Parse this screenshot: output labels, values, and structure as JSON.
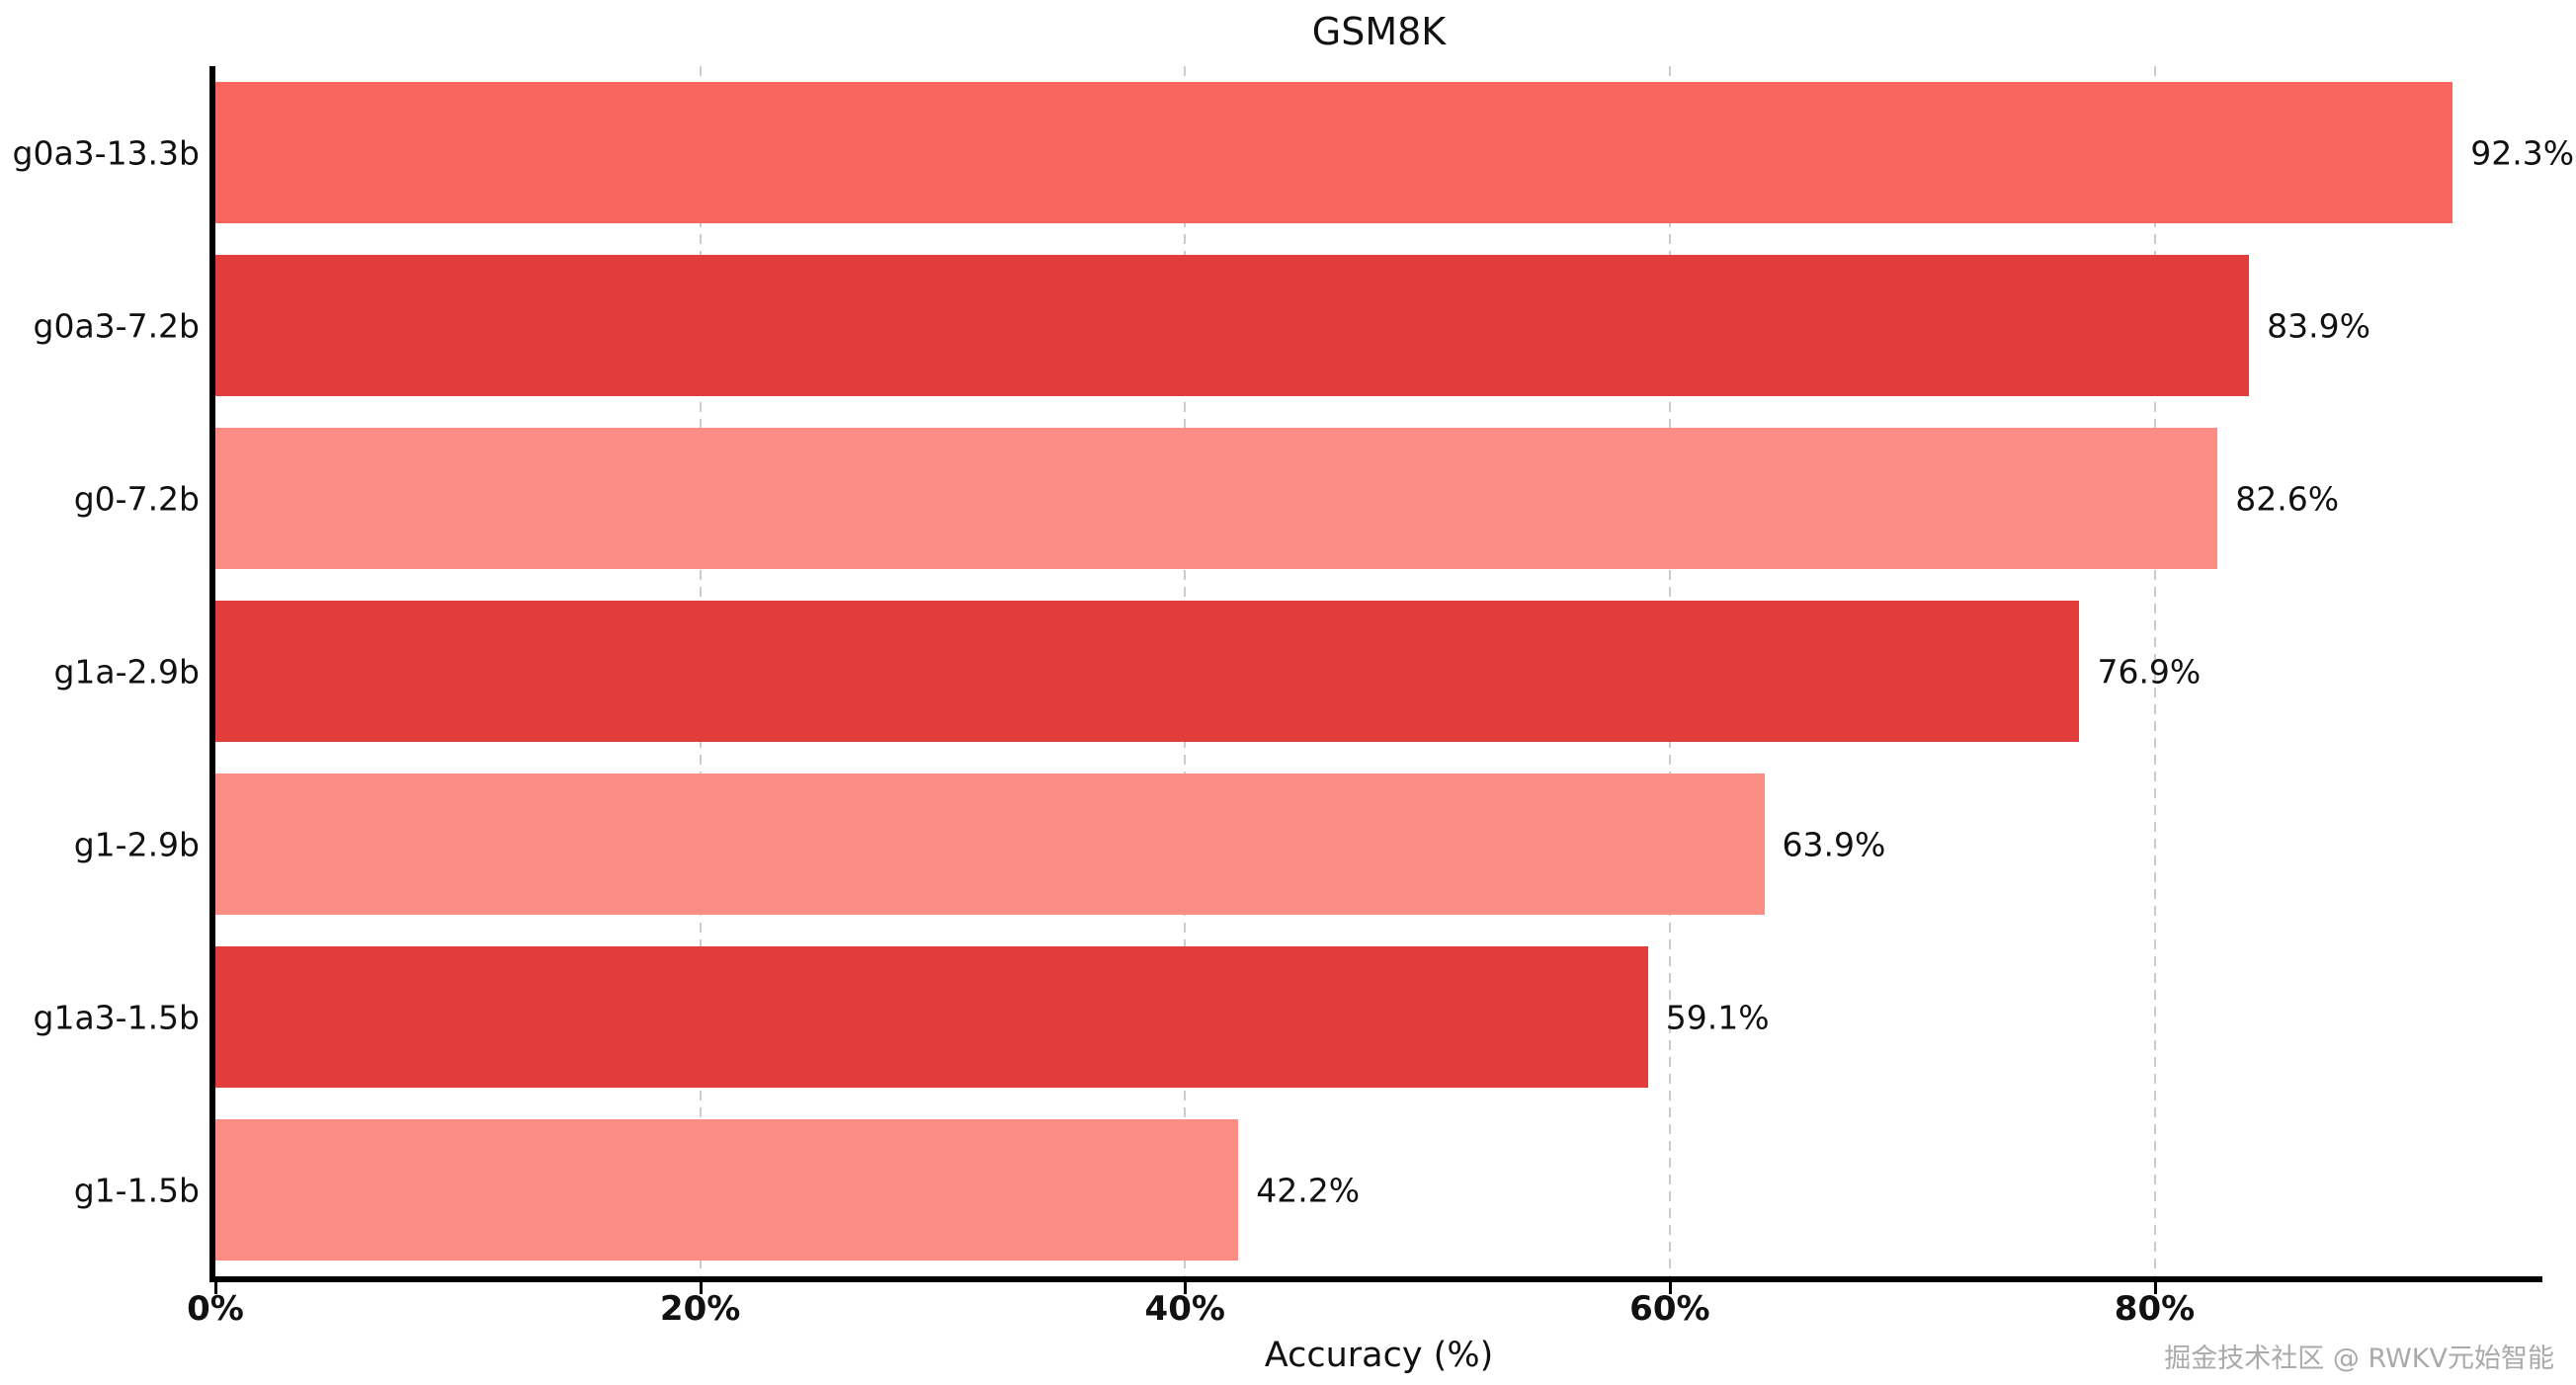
{
  "figure": {
    "watermark": "掘金技术社区 @ RWKV元始智能"
  },
  "chart_data": {
    "type": "bar",
    "orientation": "horizontal",
    "title": "GSM8K",
    "xlabel": "Accuracy (%)",
    "categories": [
      "g0a3-13.3b",
      "g0a3-7.2b",
      "g0-7.2b",
      "g1a-2.9b",
      "g1-2.9b",
      "g1a3-1.5b",
      "g1-1.5b"
    ],
    "values": [
      92.3,
      83.9,
      82.6,
      76.9,
      63.9,
      59.1,
      42.2
    ],
    "value_labels": [
      "92.3%",
      "83.9%",
      "82.6%",
      "76.9%",
      "63.9%",
      "59.1%",
      "42.2%"
    ],
    "bar_colors": [
      "#f8655c",
      "#e23d3a",
      "#fb8d84",
      "#e23d3a",
      "#fb8d84",
      "#e23d3a",
      "#fb8d84"
    ],
    "xlim": [
      0,
      96
    ],
    "xticks": [
      0,
      20,
      40,
      60,
      80
    ],
    "xtick_labels": [
      "0%",
      "20%",
      "40%",
      "60%",
      "80%"
    ],
    "grid": {
      "axis": "x",
      "style": "dashed",
      "color": "#cccccc"
    },
    "legend": "none",
    "background": "#ffffff"
  }
}
